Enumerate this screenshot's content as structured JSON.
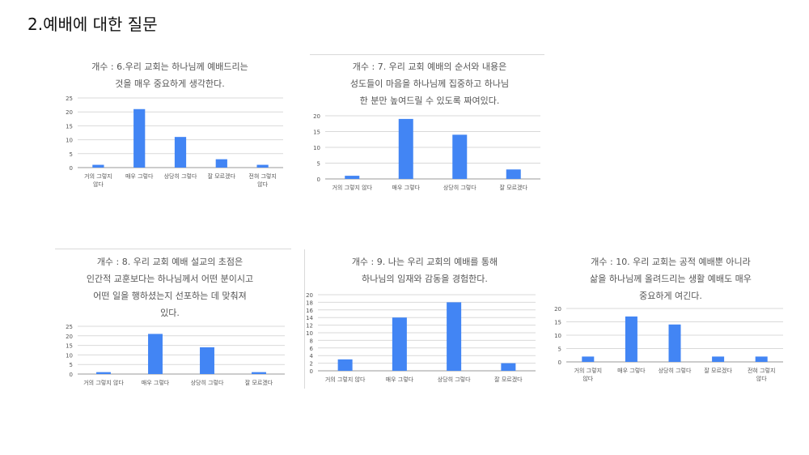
{
  "page": {
    "title": "2.예배에 대한 질문"
  },
  "colors": {
    "bar": "#4285f4",
    "grid": "#d9d9d9",
    "text": "#555555"
  },
  "chart_data": [
    {
      "type": "bar",
      "title_lines": [
        "개수 : 6.우리 교회는 하나님께 예배드리는",
        "것을 매우 중요하게 생각한다."
      ],
      "categories": [
        [
          "거의 그렇지",
          "않다"
        ],
        [
          "매우 그렇다"
        ],
        [
          "상당히 그렇다"
        ],
        [
          "잘 모르겠다"
        ],
        [
          "전혀 그렇지",
          "않다"
        ]
      ],
      "values": [
        1,
        21,
        11,
        3,
        1
      ],
      "yticks": [
        0,
        5,
        10,
        15,
        20,
        25
      ],
      "ylim": [
        0,
        25
      ]
    },
    {
      "type": "bar",
      "title_lines": [
        "개수 : 7. 우리 교회 예배의 순서와 내용은",
        "성도들이 마음을 하나님께 집중하고 하나님",
        "한 분만 높여드릴 수 있도록 짜여있다."
      ],
      "categories": [
        [
          "거의 그렇지 않다"
        ],
        [
          "매우 그렇다"
        ],
        [
          "상당히 그렇다"
        ],
        [
          "잘 모르겠다"
        ]
      ],
      "values": [
        1,
        19,
        14,
        3
      ],
      "yticks": [
        0,
        5,
        10,
        15,
        20
      ],
      "ylim": [
        0,
        20
      ]
    },
    {
      "type": "bar",
      "title_lines": [
        "개수 : 8. 우리 교회 예배 설교의 초점은",
        "인간적 교훈보다는 하나님께서 어떤 분이시고",
        "어떤 일을 행하셨는지 선포하는 데 맞춰져",
        "있다."
      ],
      "categories": [
        [
          "거의 그렇지 않다"
        ],
        [
          "매우 그렇다"
        ],
        [
          "상당히 그렇다"
        ],
        [
          "잘 모르겠다"
        ]
      ],
      "values": [
        1,
        21,
        14,
        1
      ],
      "yticks": [
        0,
        5,
        10,
        15,
        20,
        25
      ],
      "ylim": [
        0,
        25
      ]
    },
    {
      "type": "bar",
      "title_lines": [
        "개수 : 9. 나는 우리 교회의 예배를 통해",
        "하나님의 임재와 감동을 경험한다."
      ],
      "categories": [
        [
          "거의 그렇지 않다"
        ],
        [
          "매우 그렇다"
        ],
        [
          "상당히 그렇다"
        ],
        [
          "잘 모르겠다"
        ]
      ],
      "values": [
        3,
        14,
        18,
        2
      ],
      "yticks": [
        0,
        2,
        4,
        6,
        8,
        10,
        12,
        14,
        16,
        18,
        20
      ],
      "ylim": [
        0,
        20
      ]
    },
    {
      "type": "bar",
      "title_lines": [
        "개수 : 10. 우리 교회는 공적 예배뿐 아니라",
        "삶을 하나님께 올려드리는 생활 예배도 매우",
        "중요하게 여긴다."
      ],
      "categories": [
        [
          "거의 그렇지",
          "않다"
        ],
        [
          "매우 그렇다"
        ],
        [
          "상당히 그렇다"
        ],
        [
          "잘 모르겠다"
        ],
        [
          "전혀 그렇지",
          "않다"
        ]
      ],
      "values": [
        2,
        17,
        14,
        2,
        2
      ],
      "yticks": [
        0,
        5,
        10,
        15,
        20
      ],
      "ylim": [
        0,
        20
      ]
    }
  ]
}
